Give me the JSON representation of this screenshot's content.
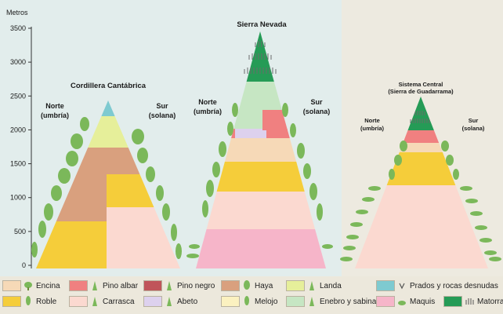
{
  "axis": {
    "label": "Metros",
    "ticks": [
      "3500",
      "3000",
      "2500",
      "2000",
      "1500",
      "1000",
      "500",
      "0"
    ]
  },
  "mountains": [
    {
      "name": "Cordillera Cantábrica",
      "north": "Norte\n(umbría)",
      "south": "Sur\n(solana)"
    },
    {
      "name": "Sierra Nevada",
      "north": "Norte\n(umbría)",
      "south": "Sur\n(solana)"
    },
    {
      "name": "Sistema Central\n(Sierra de Guadarrama)",
      "north": "Norte\n(umbría)",
      "south": "Sur\n(solana)"
    }
  ],
  "legend": [
    {
      "key": "encina",
      "label": "Encina",
      "color": "#f6d9b7",
      "icon": "broadleaf-tree-icon"
    },
    {
      "key": "roble",
      "label": "Roble",
      "color": "#f5cd3a",
      "icon": "conifer-tree-icon"
    },
    {
      "key": "pino_albar",
      "label": "Pino albar",
      "color": "#f08080",
      "icon": "conifer-tree-icon"
    },
    {
      "key": "carrasca",
      "label": "Carrasca",
      "color": "#fbd9d0",
      "icon": "conifer-tree-icon"
    },
    {
      "key": "pino_negro",
      "label": "Pino negro",
      "color": "#c0545a",
      "icon": "conifer-tree-icon"
    },
    {
      "key": "abeto",
      "label": "Abeto",
      "color": "#ddd1ee",
      "icon": "conifer-tree-icon"
    },
    {
      "key": "haya",
      "label": "Haya",
      "color": "#d9a07e",
      "icon": "broadleaf-tree-icon"
    },
    {
      "key": "melojo",
      "label": "Melojo",
      "color": "#fbf1c0",
      "icon": "conifer-tree-icon"
    },
    {
      "key": "landa",
      "label": "Landa",
      "color": "#e6ef9a",
      "icon": "conifer-tree-icon"
    },
    {
      "key": "enebro",
      "label": "Enebro y sabina",
      "color": "#c6e6c3",
      "icon": "conifer-tree-icon"
    },
    {
      "key": "prados",
      "label": "Prados y rocas desnudas",
      "color": "#7ecad0",
      "icon": "grass-tuft-icon"
    },
    {
      "key": "maquis",
      "label": "Maquis",
      "color": "#f6b5c9",
      "icon": "shrub-icon"
    },
    {
      "key": "matorral",
      "label": "Matorral",
      "color": "#259b56",
      "icon": "grass-tuft-icon"
    }
  ]
}
